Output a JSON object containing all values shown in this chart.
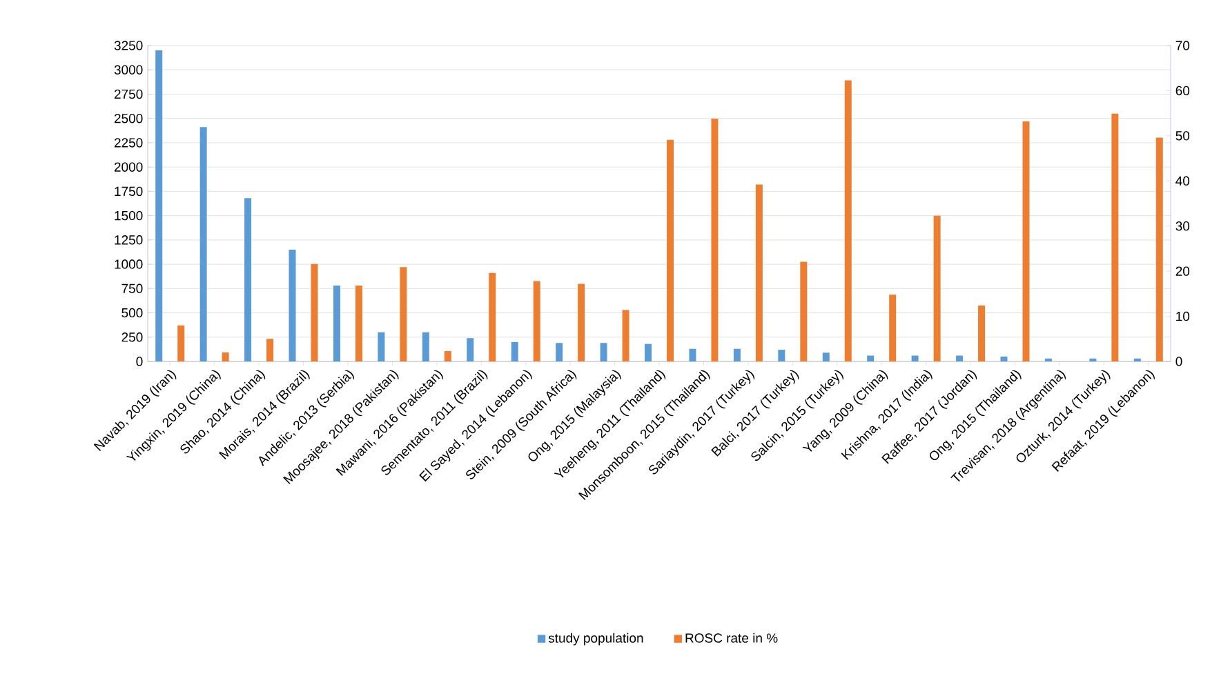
{
  "chart_data": {
    "type": "bar",
    "categories": [
      "Navab, 2019 (Iran)",
      "Yingxin, 2019 (China)",
      "Shao, 2014 (China)",
      "Morais, 2014 (Brazil)",
      "Andelic, 2013 (Serbia)",
      "Moosajee, 2018 (Pakistan)",
      "Mawani, 2016 (Pakistan)",
      "Sementato, 2011 (Brazil)",
      "El Sayed, 2014 (Lebanon)",
      "Stein, 2009 (South Africa)",
      "Ong, 2015 (Malaysia)",
      "Yeeheng, 2011 (Thailand)",
      "Monsomboon, 2015 (Thailand)",
      "Sariaydin, 2017 (Turkey)",
      "Balci, 2017 (Turkey)",
      "Salcin, 2015 (Turkey)",
      "Yang, 2009 (China)",
      "Krishna, 2017 (India)",
      "Raffee, 2017 (Jordan)",
      "Ong, 2015 (Thailand)",
      "Trevisan, 2018 (Argentina)",
      "Ozturk, 2014 (Turkey)",
      "Refaat, 2019 (Lebanon)"
    ],
    "series": [
      {
        "name": "study population",
        "color": "#5b9bd5",
        "values": [
          3200,
          2410,
          1680,
          1150,
          780,
          300,
          300,
          240,
          200,
          190,
          190,
          180,
          130,
          130,
          120,
          90,
          60,
          60,
          60,
          50,
          30,
          30,
          30
        ]
      },
      {
        "name": "ROSC rate in %",
        "color": "#ed7d31",
        "axis": "y2",
        "values": [
          8,
          2,
          5,
          21.6,
          16.8,
          20.9,
          2.3,
          19.6,
          17.8,
          17.2,
          11.4,
          49.1,
          53.8,
          39.2,
          22.1,
          62.3,
          14.8,
          32.3,
          12.4,
          53.2,
          null,
          54.9,
          49.6
        ]
      }
    ],
    "ylim": [
      0,
      3250
    ],
    "yticks": [
      0,
      250,
      500,
      750,
      1000,
      1250,
      1500,
      1750,
      2000,
      2250,
      2500,
      2750,
      3000,
      3250
    ],
    "y2lim": [
      0,
      70
    ],
    "y2ticks": [
      0,
      10,
      20,
      30,
      40,
      50,
      60,
      70
    ],
    "grid": "y",
    "legend": "bottom"
  }
}
